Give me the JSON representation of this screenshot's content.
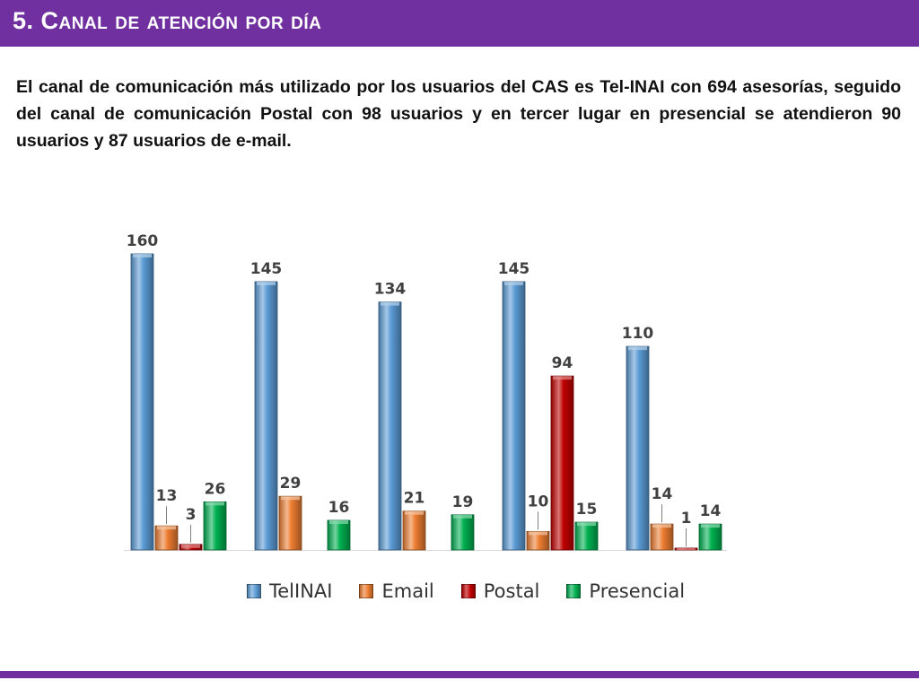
{
  "header": {
    "title": "5. Canal de atención por día"
  },
  "intro_text": "El canal de comunicación más utilizado por los usuarios del CAS es Tel-INAI con 694 asesorías, seguido del canal de comunicación Postal con 98 usuarios y en tercer lugar en presencial se atendieron 90 usuarios y 87 usuarios de e-mail.",
  "colors": {
    "header": "#7030a0",
    "telinai": "#5b9bd5",
    "email": "#ed7d31",
    "postal": "#c00000",
    "presencial": "#00b050"
  },
  "chart_data": {
    "type": "bar",
    "title": "",
    "xlabel": "",
    "ylabel": "",
    "categories": [
      "",
      "",
      "",
      "",
      ""
    ],
    "ylim": [
      0,
      160
    ],
    "grid": false,
    "legend_position": "bottom",
    "series": [
      {
        "name": "TelINAI",
        "values": [
          160,
          145,
          134,
          145,
          110
        ],
        "color": "#5b9bd5"
      },
      {
        "name": "Email",
        "values": [
          13,
          29,
          21,
          10,
          14
        ],
        "color": "#ed7d31"
      },
      {
        "name": "Postal",
        "values": [
          3,
          0,
          0,
          94,
          1
        ],
        "color": "#c00000"
      },
      {
        "name": "Presencial",
        "values": [
          26,
          16,
          19,
          15,
          14
        ],
        "color": "#00b050"
      }
    ]
  }
}
